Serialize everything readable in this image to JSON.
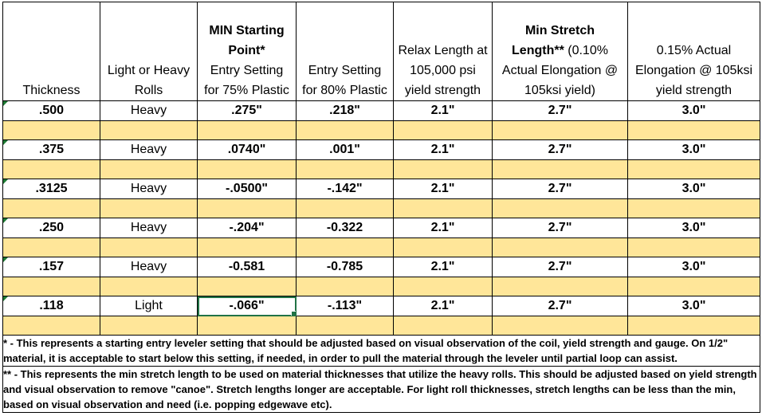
{
  "headers": {
    "thickness": "Thickness",
    "rolls_line1": "Light or Heavy",
    "rolls_line2": "Rolls",
    "min_start_bold1": "MIN Starting",
    "min_start_bold2": "Point*",
    "min_start_line3": "Entry Setting",
    "min_start_line4": "for 75% Plastic",
    "entry80_line1": "Entry Setting",
    "entry80_line2": "for 80% Plastic",
    "relax_line1": "Relax Length at",
    "relax_line2": "105,000 psi",
    "relax_line3": "yield strength",
    "minstretch_bold1": "Min Stretch",
    "minstretch_bold2": "Length**",
    "minstretch_rest2": " (0.10%",
    "minstretch_line3": "Actual Elongation @",
    "minstretch_line4": "105ksi yield)",
    "elong_line1": "0.15% Actual",
    "elong_line2": "Elongation @ 105ksi",
    "elong_line3": "yield strength"
  },
  "rows": [
    {
      "thickness": ".500",
      "rolls": "Heavy",
      "min_start": ".275\"",
      "entry80": ".218\"",
      "relax": "2.1\"",
      "min_stretch": "2.7\"",
      "elong": "3.0\""
    },
    {
      "thickness": ".375",
      "rolls": "Heavy",
      "min_start": ".0740\"",
      "entry80": ".001\"",
      "relax": "2.1\"",
      "min_stretch": "2.7\"",
      "elong": "3.0\""
    },
    {
      "thickness": ".3125",
      "rolls": "Heavy",
      "min_start": "-.0500\"",
      "entry80": "-.142\"",
      "relax": "2.1\"",
      "min_stretch": "2.7\"",
      "elong": "3.0\""
    },
    {
      "thickness": ".250",
      "rolls": "Heavy",
      "min_start": "-.204\"",
      "entry80": "-0.322",
      "relax": "2.1\"",
      "min_stretch": "2.7\"",
      "elong": "3.0\""
    },
    {
      "thickness": ".157",
      "rolls": "Heavy",
      "min_start": "-0.581",
      "entry80": "-0.785",
      "relax": "2.1\"",
      "min_stretch": "2.7\"",
      "elong": "3.0\""
    },
    {
      "thickness": ".118",
      "rolls": "Light",
      "min_start": "-.066\"",
      "entry80": "-.113\"",
      "relax": "2.1\"",
      "min_stretch": "2.7\"",
      "elong": "3.0\""
    }
  ],
  "notes": {
    "note1": "* - This represents a starting entry leveler setting that should be adjusted based on visual observation of the coil, yield strength and gauge. On 1/2\" material, it is acceptable to start below this setting, if needed, in order to pull the material through the leveler until partial loop can assist.",
    "note2": "** - This represents the min stretch length to be used on material thicknesses that utilize the heavy rolls. This should be adjusted based on yield strength and visual observation to remove \"canoe\". Stretch lengths longer are acceptable.  For light roll thicknesses, stretch lengths can be less than the min, based on visual observation and need (i.e. popping edgewave etc)."
  },
  "colors": {
    "band": "#ffe699",
    "selection": "#217346",
    "indicator": "#1e7b34"
  }
}
